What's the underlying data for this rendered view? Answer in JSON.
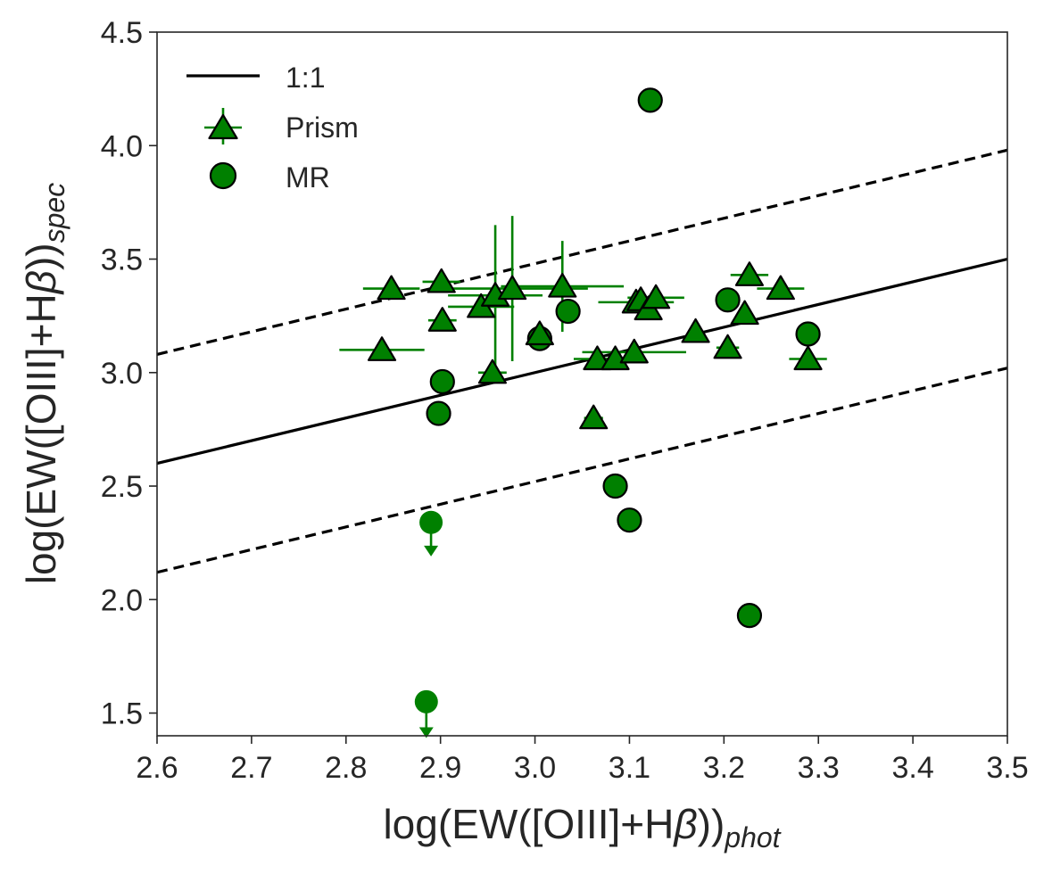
{
  "chart_data": {
    "type": "scatter",
    "xlim": [
      2.6,
      3.5
    ],
    "ylim": [
      1.4,
      4.5
    ],
    "xticks": [
      "2.6",
      "2.7",
      "2.8",
      "2.9",
      "3.0",
      "3.1",
      "3.2",
      "3.3",
      "3.4",
      "3.5"
    ],
    "yticks": [
      "1.5",
      "2.0",
      "2.5",
      "3.0",
      "3.5",
      "4.0",
      "4.5"
    ],
    "xlabel": {
      "main": "log(EW([OIII]+H",
      "greek": "β",
      "close": "))",
      "sub": "phot"
    },
    "ylabel": {
      "main": "log(EW([OIII]+H",
      "greek": "β",
      "close": "))",
      "sub": "spec"
    },
    "grid": false,
    "colors": {
      "series": "#008000",
      "edge": "#000000",
      "line": "#000000",
      "axis": "#262626"
    },
    "lines": [
      {
        "name": "1:1",
        "x": [
          2.6,
          3.5
        ],
        "y": [
          2.6,
          3.5
        ],
        "style": "solid"
      },
      {
        "name": "upper",
        "x": [
          2.6,
          3.5
        ],
        "y": [
          3.08,
          3.98
        ],
        "style": "dashed"
      },
      {
        "name": "lower",
        "x": [
          2.6,
          3.5
        ],
        "y": [
          2.12,
          3.02
        ],
        "style": "dashed"
      }
    ],
    "legend": {
      "position": "top-left",
      "entries": [
        {
          "label": "1:1",
          "kind": "line"
        },
        {
          "label": "Prism",
          "kind": "triangle"
        },
        {
          "label": "MR",
          "kind": "circle"
        }
      ]
    },
    "series": [
      {
        "name": "Prism",
        "marker": "triangle",
        "points": [
          {
            "x": 2.838,
            "y": 3.1,
            "xerr": 0.045,
            "yerr": 0.0
          },
          {
            "x": 2.848,
            "y": 3.37,
            "xerr": 0.03,
            "yerr": 0.0
          },
          {
            "x": 2.901,
            "y": 3.4,
            "xerr": 0.02,
            "yerr": 0.04
          },
          {
            "x": 2.902,
            "y": 3.23,
            "xerr": 0.015,
            "yerr": 0.0
          },
          {
            "x": 2.943,
            "y": 3.29,
            "xerr": 0.035,
            "yerr": 0.0
          },
          {
            "x": 2.955,
            "y": 3.0,
            "xerr": 0.015,
            "yerr": 0.0
          },
          {
            "x": 2.958,
            "y": 3.34,
            "xerr": 0.05,
            "yerr": 0.31
          },
          {
            "x": 2.976,
            "y": 3.37,
            "xerr": 0.08,
            "yerr": 0.32
          },
          {
            "x": 3.005,
            "y": 3.17,
            "xerr": 0.0,
            "yerr": 0.0
          },
          {
            "x": 3.029,
            "y": 3.38,
            "xerr": 0.065,
            "yerr": 0.2
          },
          {
            "x": 3.062,
            "y": 2.8,
            "xerr": 0.01,
            "yerr": 0.0
          },
          {
            "x": 3.066,
            "y": 3.06,
            "xerr": 0.025,
            "yerr": 0.0
          },
          {
            "x": 3.085,
            "y": 3.06,
            "xerr": 0.025,
            "yerr": 0.0
          },
          {
            "x": 3.105,
            "y": 3.09,
            "xerr": 0.055,
            "yerr": 0.0
          },
          {
            "x": 3.107,
            "y": 3.31,
            "xerr": 0.04,
            "yerr": 0.0
          },
          {
            "x": 3.112,
            "y": 3.32,
            "xerr": 0.0,
            "yerr": 0.0
          },
          {
            "x": 3.12,
            "y": 3.28,
            "xerr": 0.0,
            "yerr": 0.0
          },
          {
            "x": 3.128,
            "y": 3.33,
            "xerr": 0.03,
            "yerr": 0.0
          },
          {
            "x": 3.17,
            "y": 3.18,
            "xerr": 0.0,
            "yerr": 0.0
          },
          {
            "x": 3.204,
            "y": 3.11,
            "xerr": 0.012,
            "yerr": 0.0
          },
          {
            "x": 3.222,
            "y": 3.26,
            "xerr": 0.0,
            "yerr": 0.0
          },
          {
            "x": 3.227,
            "y": 3.43,
            "xerr": 0.02,
            "yerr": 0.0
          },
          {
            "x": 3.26,
            "y": 3.37,
            "xerr": 0.025,
            "yerr": 0.0
          },
          {
            "x": 3.289,
            "y": 3.06,
            "xerr": 0.02,
            "yerr": 0.0
          }
        ]
      },
      {
        "name": "MR",
        "marker": "circle",
        "points": [
          {
            "x": 2.898,
            "y": 2.82
          },
          {
            "x": 2.902,
            "y": 2.96
          },
          {
            "x": 3.005,
            "y": 3.15
          },
          {
            "x": 3.035,
            "y": 3.27
          },
          {
            "x": 3.085,
            "y": 2.5
          },
          {
            "x": 3.1,
            "y": 2.35
          },
          {
            "x": 3.122,
            "y": 4.2
          },
          {
            "x": 3.204,
            "y": 3.32
          },
          {
            "x": 3.227,
            "y": 1.93
          },
          {
            "x": 3.289,
            "y": 3.17
          }
        ]
      },
      {
        "name": "MR upper limits",
        "marker": "circle-arrow",
        "points": [
          {
            "x": 2.89,
            "y": 2.34,
            "arrow_to": 2.19
          },
          {
            "x": 2.885,
            "y": 1.55,
            "arrow_to": 1.39
          }
        ]
      }
    ]
  }
}
